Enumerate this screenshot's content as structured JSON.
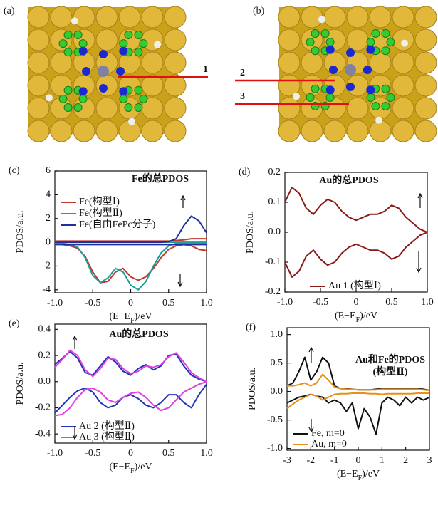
{
  "images": [
    {
      "label": "(a)",
      "markers": [
        "1"
      ]
    },
    {
      "label": "(b)",
      "markers": [
        "2",
        "3"
      ]
    }
  ],
  "chart_data": [
    {
      "type": "line",
      "label": "(c)",
      "title": "Fe的总PDOS",
      "ylabel": "PDOS/a.u.",
      "xlabel": [
        "(E−E",
        "F",
        ")/eV"
      ],
      "legend": "upper left",
      "x": [
        -1,
        -0.9,
        -0.8,
        -0.7,
        -0.6,
        -0.5,
        -0.4,
        -0.3,
        -0.2,
        -0.1,
        0,
        0.1,
        0.2,
        0.3,
        0.4,
        0.5,
        0.6,
        0.7,
        0.8,
        0.9,
        1
      ],
      "xlim": [
        -1,
        1
      ],
      "xticks": [
        {
          "value": -1,
          "label": "-1.0"
        },
        {
          "value": -0.5,
          "label": "-0.5"
        },
        0,
        0.5,
        {
          "value": 1,
          "label": "1.0"
        }
      ],
      "ylim": [
        -4.25,
        6
      ],
      "yticks": [
        6,
        4,
        2,
        0,
        -2,
        -4
      ],
      "series": [
        {
          "name": "Fe(构型Ⅰ)",
          "color": "#c0392b",
          "values": [
            0.1,
            0.1,
            0.1,
            0.1,
            0.1,
            0.1,
            0.1,
            0.1,
            0.1,
            0.1,
            0.1,
            0.1,
            0.1,
            0.1,
            0.1,
            0.1,
            0.15,
            0.2,
            0.3,
            0.3,
            0.3
          ],
          "values_down": [
            -0.1,
            -0.2,
            -0.3,
            -0.5,
            -1.2,
            -2.5,
            -3.4,
            -3.3,
            -2.5,
            -2.2,
            -2.9,
            -3.2,
            -2.9,
            -2.2,
            -1.3,
            -0.6,
            -0.3,
            -0.2,
            -0.3,
            -0.6,
            -0.7
          ]
        },
        {
          "name": "Fe(构型Ⅱ)",
          "color": "#1a9e9a",
          "values": [
            0,
            0,
            0,
            0,
            0,
            0,
            0,
            0,
            0,
            0,
            0,
            0,
            0,
            0,
            0,
            0,
            0,
            0,
            0,
            0,
            0
          ],
          "values_down": [
            -0.1,
            -0.1,
            -0.2,
            -0.4,
            -1.3,
            -2.8,
            -3.4,
            -3,
            -2.2,
            -2.5,
            -3.6,
            -4,
            -3.3,
            -2,
            -0.9,
            -0.3,
            -0.1,
            -0.1,
            -0.1,
            -0.1,
            -0.1
          ]
        },
        {
          "name": "Fe(自由FePc分子)",
          "color": "#1f2f9e",
          "values": [
            0,
            0,
            0,
            0,
            0,
            0,
            0,
            0,
            0,
            0,
            0,
            0,
            0,
            0,
            0,
            0.05,
            0.3,
            1.4,
            2.2,
            1.8,
            0.8
          ],
          "values_down": [
            -0.2,
            -0.2,
            -0.2,
            -0.2,
            -0.2,
            -0.2,
            -0.2,
            -0.2,
            -0.2,
            -0.2,
            -0.2,
            -0.2,
            -0.2,
            -0.2,
            -0.2,
            -0.2,
            -0.2,
            -0.2,
            -0.2,
            -0.2,
            -0.2
          ]
        }
      ]
    },
    {
      "type": "line",
      "label": "(d)",
      "title": "Au的总PDOS",
      "ylabel": "PDOS/a.u.",
      "xlabel": [
        "(E−E",
        "F",
        ")/eV"
      ],
      "legend": "lower right",
      "x": [
        -1,
        -0.9,
        -0.8,
        -0.7,
        -0.6,
        -0.5,
        -0.4,
        -0.3,
        -0.2,
        -0.1,
        0,
        0.1,
        0.2,
        0.3,
        0.4,
        0.5,
        0.6,
        0.7,
        0.8,
        0.9,
        1
      ],
      "xlim": [
        -1,
        1
      ],
      "xticks": [
        {
          "value": -1,
          "label": "-1.0"
        },
        {
          "value": -0.5,
          "label": "-0.5"
        },
        0,
        0.5,
        {
          "value": 1,
          "label": "1.0"
        }
      ],
      "ylim": [
        -0.2,
        0.2
      ],
      "yticks": [
        0.2,
        0.1,
        {
          "value": 0,
          "label": "0.0"
        },
        {
          "value": -0.1,
          "label": "-0.1"
        },
        {
          "value": -0.2,
          "label": "-0.2"
        }
      ],
      "series": [
        {
          "name": "Au 1 (构型Ⅰ)",
          "color": "#8b1a1a",
          "values": [
            0.1,
            0.15,
            0.13,
            0.08,
            0.06,
            0.09,
            0.11,
            0.1,
            0.07,
            0.05,
            0.04,
            0.05,
            0.06,
            0.06,
            0.07,
            0.09,
            0.08,
            0.05,
            0.03,
            0.01,
            0
          ],
          "values_down": [
            -0.1,
            -0.15,
            -0.13,
            -0.08,
            -0.06,
            -0.09,
            -0.11,
            -0.1,
            -0.07,
            -0.05,
            -0.04,
            -0.05,
            -0.06,
            -0.06,
            -0.07,
            -0.09,
            -0.08,
            -0.05,
            -0.03,
            -0.01,
            0
          ]
        }
      ]
    },
    {
      "type": "line",
      "label": "(e)",
      "title": "Au的总PDOS",
      "ylabel": "PDOS/a.u.",
      "xlabel": [
        "(E−E",
        "F",
        ")/eV"
      ],
      "legend": "lower left",
      "x": [
        -1,
        -0.9,
        -0.8,
        -0.7,
        -0.6,
        -0.5,
        -0.4,
        -0.3,
        -0.2,
        -0.1,
        0,
        0.1,
        0.2,
        0.3,
        0.4,
        0.5,
        0.6,
        0.7,
        0.8,
        0.9,
        1
      ],
      "xlim": [
        -1,
        1
      ],
      "xticks": [
        {
          "value": -1,
          "label": "-1.0"
        },
        {
          "value": -0.5,
          "label": "-0.5"
        },
        0,
        0.5,
        {
          "value": 1,
          "label": "1.0"
        }
      ],
      "ylim": [
        -0.47,
        0.44
      ],
      "yticks": [
        0.4,
        0.2,
        {
          "value": 0,
          "label": "0.0"
        },
        {
          "value": -0.2,
          "label": "-0.2"
        },
        {
          "value": -0.4,
          "label": "-0.4"
        }
      ],
      "series": [
        {
          "name": "Au 2 (构型Ⅱ)",
          "color": "#2233bb",
          "values": [
            0.13,
            0.18,
            0.23,
            0.18,
            0.07,
            0.05,
            0.12,
            0.19,
            0.15,
            0.08,
            0.05,
            0.1,
            0.13,
            0.09,
            0.12,
            0.2,
            0.21,
            0.12,
            0.05,
            0.02,
            0
          ],
          "values_down": [
            -0.24,
            -0.18,
            -0.12,
            -0.07,
            -0.05,
            -0.08,
            -0.16,
            -0.2,
            -0.18,
            -0.12,
            -0.1,
            -0.13,
            -0.18,
            -0.2,
            -0.16,
            -0.1,
            -0.1,
            -0.16,
            -0.2,
            -0.1,
            -0.02
          ]
        },
        {
          "name": "Au 3 (构型Ⅱ)",
          "color": "#e040e0",
          "values": [
            0.11,
            0.17,
            0.24,
            0.2,
            0.09,
            0.04,
            0.1,
            0.18,
            0.17,
            0.1,
            0.06,
            0.08,
            0.12,
            0.11,
            0.13,
            0.19,
            0.22,
            0.15,
            0.07,
            0.03,
            0
          ],
          "values_down": [
            -0.26,
            -0.25,
            -0.2,
            -0.12,
            -0.06,
            -0.05,
            -0.08,
            -0.14,
            -0.16,
            -0.12,
            -0.09,
            -0.08,
            -0.12,
            -0.18,
            -0.22,
            -0.2,
            -0.14,
            -0.08,
            -0.05,
            -0.02,
            0
          ]
        }
      ]
    },
    {
      "type": "line",
      "label": "(f)",
      "title": "Au和Fe的PDOS",
      "subtitle": "(构型Ⅱ)",
      "ylabel": "PDOS/a.u.",
      "xlabel": [
        "(E−E",
        "F",
        ")/eV"
      ],
      "legend": "lower left",
      "x": [
        -3,
        -2.75,
        -2.5,
        -2.25,
        -2,
        -1.75,
        -1.5,
        -1.25,
        -1,
        -0.75,
        -0.5,
        -0.25,
        0,
        0.25,
        0.5,
        0.75,
        1,
        1.25,
        1.5,
        1.75,
        2,
        2.25,
        2.5,
        2.75,
        3
      ],
      "xlim": [
        -3,
        3
      ],
      "xticks": [
        -3,
        -2,
        -1,
        0,
        1,
        2,
        3
      ],
      "ylim": [
        -1.03,
        1.12
      ],
      "yticks": [
        {
          "value": 1,
          "label": "1.0"
        },
        0.5,
        {
          "value": 0,
          "label": "0.0"
        },
        {
          "value": -0.5,
          "label": "-0.5"
        },
        {
          "value": -1,
          "label": "-1.0"
        }
      ],
      "series": [
        {
          "name": "Fe, m=0",
          "color": "#111111",
          "values": [
            0.1,
            0.15,
            0.35,
            0.6,
            0.2,
            0.35,
            0.6,
            0.5,
            0.1,
            0.05,
            0.05,
            0.04,
            0.03,
            0.03,
            0.03,
            0.04,
            0.05,
            0.05,
            0.05,
            0.05,
            0.05,
            0.05,
            0.05,
            0.04,
            0.02
          ],
          "values_down": [
            -0.2,
            -0.15,
            -0.1,
            -0.08,
            -0.05,
            -0.08,
            -0.1,
            -0.2,
            -0.15,
            -0.2,
            -0.35,
            -0.2,
            -0.65,
            -0.3,
            -0.45,
            -0.75,
            -0.2,
            -0.1,
            -0.15,
            -0.25,
            -0.1,
            -0.2,
            -0.1,
            -0.15,
            -0.1
          ]
        },
        {
          "name": "Au, m=0",
          "color": "#e8901a",
          "values": [
            0.1,
            0.1,
            0.12,
            0.15,
            0.1,
            0.15,
            0.3,
            0.2,
            0.08,
            0.05,
            0.04,
            0.04,
            0.03,
            0.03,
            0.03,
            0.03,
            0.04,
            0.04,
            0.04,
            0.04,
            0.04,
            0.04,
            0.04,
            0.03,
            0.02
          ],
          "values_down": [
            -0.3,
            -0.22,
            -0.15,
            -0.1,
            -0.05,
            -0.08,
            -0.15,
            -0.1,
            -0.05,
            -0.04,
            -0.04,
            -0.03,
            -0.03,
            -0.03,
            -0.04,
            -0.04,
            -0.05,
            -0.04,
            -0.04,
            -0.04,
            -0.04,
            -0.04,
            -0.03,
            -0.03,
            -0.03
          ]
        }
      ]
    }
  ]
}
